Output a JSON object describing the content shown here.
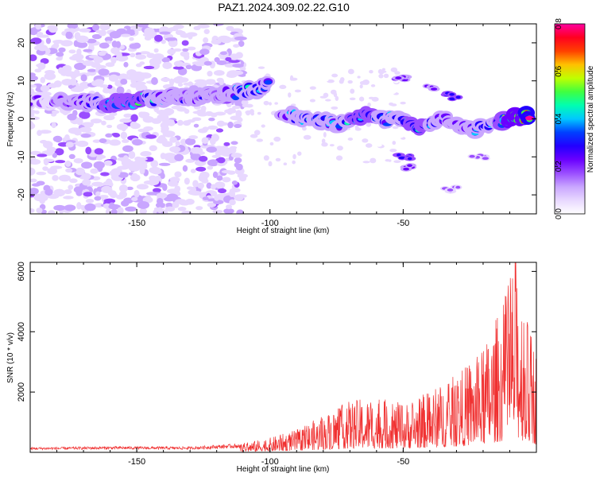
{
  "title": "PAZ1.2024.309.02.22.G10",
  "colors": {
    "signal_line": "#f03030",
    "frame": "#000000",
    "colormap": [
      "#ffffff",
      "#e8d8ff",
      "#c9a6ff",
      "#9a4dff",
      "#6a00ff",
      "#2200ff",
      "#0040ff",
      "#00c8ff",
      "#00ffb0",
      "#40ff40",
      "#c0ff00",
      "#ffc000",
      "#ff4000",
      "#ff0020",
      "#ff00a0"
    ]
  },
  "chart_data": [
    {
      "type": "heatmap",
      "xlabel": "Height of straight line (km)",
      "ylabel": "Frequency (Hz)",
      "xlim": [
        -190,
        0
      ],
      "ylim": [
        -25,
        25
      ],
      "xticks": [
        -150,
        -100,
        -50
      ],
      "yticks": [
        -20,
        -10,
        0,
        10,
        20
      ],
      "colorbar": {
        "label": "Normalized spectral amplitude",
        "range": [
          0,
          0.8
        ],
        "ticks": [
          "0.0",
          "0.2",
          "0.4",
          "0.6",
          "0.8"
        ]
      },
      "noise_region_x": [
        -190,
        -110
      ],
      "main_trace": [
        {
          "x": -190,
          "y": 4.5,
          "a": 0.2
        },
        {
          "x": -170,
          "y": 4.5,
          "a": 0.3
        },
        {
          "x": -160,
          "y": 4,
          "a": 0.45
        },
        {
          "x": -150,
          "y": 5,
          "a": 0.45
        },
        {
          "x": -140,
          "y": 5.5,
          "a": 0.35
        },
        {
          "x": -130,
          "y": 6,
          "a": 0.25
        },
        {
          "x": -120,
          "y": 6.5,
          "a": 0.25
        },
        {
          "x": -110,
          "y": 7,
          "a": 0.4
        },
        {
          "x": -100,
          "y": 9,
          "a": 0.35
        }
      ],
      "lower_trace": [
        {
          "x": -95,
          "y": 1,
          "a": 0.35
        },
        {
          "x": -85,
          "y": 0,
          "a": 0.4
        },
        {
          "x": -75,
          "y": -1.5,
          "a": 0.35
        },
        {
          "x": -65,
          "y": 1,
          "a": 0.45
        },
        {
          "x": -55,
          "y": 0,
          "a": 0.35
        },
        {
          "x": -45,
          "y": -2,
          "a": 0.45
        },
        {
          "x": -35,
          "y": 0,
          "a": 0.35
        },
        {
          "x": -25,
          "y": -3,
          "a": 0.35
        },
        {
          "x": -15,
          "y": -1,
          "a": 0.4
        },
        {
          "x": -8,
          "y": 0.5,
          "a": 0.7
        },
        {
          "x": -2,
          "y": 1,
          "a": 0.75
        }
      ],
      "side_branches": [
        {
          "x": -50,
          "y": 10.5,
          "a": 0.2
        },
        {
          "x": -40,
          "y": 8.5,
          "a": 0.25
        },
        {
          "x": -32,
          "y": 6,
          "a": 0.3
        },
        {
          "x": -22,
          "y": -10,
          "a": 0.15
        },
        {
          "x": -50,
          "y": -10,
          "a": 0.3
        },
        {
          "x": -48,
          "y": -12.5,
          "a": 0.25
        },
        {
          "x": -32,
          "y": -18.5,
          "a": 0.15
        }
      ]
    },
    {
      "type": "line",
      "xlabel": "Height of straight line (km)",
      "ylabel": "SNR (10 * v/v)",
      "xlim": [
        -190,
        0
      ],
      "ylim": [
        0,
        6300
      ],
      "xticks": [
        -150,
        -100,
        -50
      ],
      "yticks": [
        2000,
        4000,
        6000
      ],
      "series": [
        {
          "envelope": [
            {
              "x": -190,
              "y": 150
            },
            {
              "x": -160,
              "y": 180
            },
            {
              "x": -130,
              "y": 170
            },
            {
              "x": -112,
              "y": 260
            },
            {
              "x": -100,
              "y": 450
            },
            {
              "x": -90,
              "y": 700
            },
            {
              "x": -80,
              "y": 1150
            },
            {
              "x": -70,
              "y": 1600
            },
            {
              "x": -60,
              "y": 1700
            },
            {
              "x": -50,
              "y": 1500
            },
            {
              "x": -40,
              "y": 1900
            },
            {
              "x": -30,
              "y": 2400
            },
            {
              "x": -20,
              "y": 3200
            },
            {
              "x": -12,
              "y": 4800
            },
            {
              "x": -8,
              "y": 6200
            },
            {
              "x": -4,
              "y": 4300
            },
            {
              "x": 0,
              "y": 3200
            }
          ]
        }
      ]
    }
  ]
}
